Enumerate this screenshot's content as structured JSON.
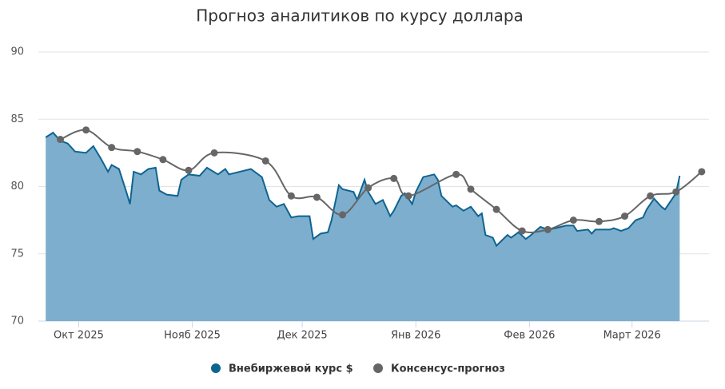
{
  "chart_data": {
    "type": "area-line",
    "title": "Прогноз аналитиков по курсу доллара",
    "xlim": [
      -11,
      172
    ],
    "xticks": [
      {
        "value": 0,
        "label": "Окт 2025"
      },
      {
        "value": 31,
        "label": "Нояб 2025"
      },
      {
        "value": 61,
        "label": "Дек 2025"
      },
      {
        "value": 92,
        "label": "Янв 2026"
      },
      {
        "value": 123,
        "label": "Фев 2026"
      },
      {
        "value": 151,
        "label": "Март 2026"
      }
    ],
    "ylim": [
      70,
      90
    ],
    "yticks": [
      70,
      75,
      80,
      85,
      90
    ],
    "grid": true,
    "legend": "bottom",
    "series": [
      {
        "name": "Внебиржевой курс $",
        "kind": "area",
        "color": "#0e6491",
        "fill": "#7eaecd",
        "x": [
          -9,
          -7,
          -5,
          -3,
          -1,
          2,
          4,
          6,
          8,
          9,
          11,
          13,
          14,
          15,
          17,
          19,
          21,
          22,
          24,
          27,
          28,
          30,
          33,
          35,
          38,
          40,
          41,
          44,
          47,
          50,
          52,
          54,
          56,
          58,
          60,
          63,
          64,
          66,
          68,
          69,
          71,
          72,
          75,
          76,
          78,
          79,
          81,
          83,
          85,
          86,
          88,
          89,
          91,
          92,
          94,
          97,
          98,
          99,
          102,
          103,
          105,
          107,
          109,
          110,
          111,
          113,
          114,
          117,
          118,
          120,
          122,
          123,
          126,
          128,
          130,
          133,
          135,
          136,
          139,
          140,
          141,
          145,
          146,
          148,
          150,
          152,
          154,
          155,
          157,
          159,
          160,
          162,
          163,
          164
        ],
        "values": [
          83.65,
          84.0,
          83.4,
          83.2,
          82.6,
          82.5,
          83.0,
          82.1,
          81.1,
          81.6,
          81.3,
          79.6,
          78.7,
          81.1,
          80.9,
          81.3,
          81.4,
          79.7,
          79.4,
          79.3,
          80.5,
          80.9,
          80.8,
          81.4,
          80.9,
          81.3,
          80.9,
          81.1,
          81.3,
          80.7,
          79.0,
          78.5,
          78.7,
          77.7,
          77.8,
          77.8,
          76.1,
          76.5,
          76.6,
          77.5,
          80.1,
          79.8,
          79.6,
          79.0,
          80.5,
          79.6,
          78.7,
          79.0,
          77.8,
          78.2,
          79.3,
          79.5,
          78.7,
          79.6,
          80.7,
          80.9,
          80.5,
          79.3,
          78.5,
          78.6,
          78.2,
          78.5,
          77.8,
          78.0,
          76.4,
          76.2,
          75.6,
          76.4,
          76.2,
          76.6,
          76.1,
          76.3,
          77.0,
          76.8,
          76.9,
          77.1,
          77.1,
          76.7,
          76.8,
          76.5,
          76.8,
          76.8,
          76.9,
          76.7,
          76.9,
          77.5,
          77.7,
          78.3,
          79.1,
          78.5,
          78.3,
          79.1,
          79.5,
          80.8
        ]
      },
      {
        "name": "Консенсус-прогноз",
        "kind": "line",
        "color": "#666666",
        "x": [
          -5,
          2,
          9,
          16,
          23,
          30,
          37,
          51,
          58,
          65,
          72,
          79,
          86,
          90,
          103,
          107,
          114,
          121,
          128,
          135,
          142,
          149,
          156,
          163,
          170
        ],
        "values": [
          83.5,
          84.2,
          82.9,
          82.6,
          82.0,
          81.2,
          82.5,
          81.9,
          79.3,
          79.2,
          77.9,
          79.9,
          80.6,
          79.3,
          80.9,
          79.8,
          78.3,
          76.7,
          76.8,
          77.5,
          77.4,
          77.8,
          79.3,
          79.6,
          81.1
        ]
      }
    ]
  }
}
